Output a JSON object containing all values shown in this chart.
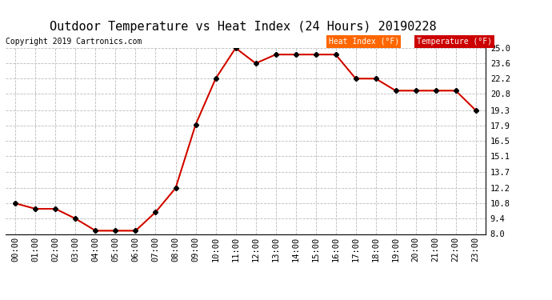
{
  "title": "Outdoor Temperature vs Heat Index (24 Hours) 20190228",
  "copyright": "Copyright 2019 Cartronics.com",
  "hours": [
    "00:00",
    "01:00",
    "02:00",
    "03:00",
    "04:00",
    "05:00",
    "06:00",
    "07:00",
    "08:00",
    "09:00",
    "10:00",
    "11:00",
    "12:00",
    "13:00",
    "14:00",
    "15:00",
    "16:00",
    "17:00",
    "18:00",
    "19:00",
    "20:00",
    "21:00",
    "22:00",
    "23:00"
  ],
  "temperature": [
    10.8,
    10.3,
    10.3,
    9.4,
    8.3,
    8.3,
    8.3,
    10.0,
    12.2,
    18.0,
    22.2,
    25.0,
    23.6,
    24.4,
    24.4,
    24.4,
    24.4,
    22.2,
    22.2,
    21.1,
    21.1,
    21.1,
    21.1,
    19.3
  ],
  "heat_index": [
    10.8,
    10.3,
    10.3,
    9.4,
    8.3,
    8.3,
    8.3,
    10.0,
    12.2,
    18.0,
    22.2,
    25.0,
    23.6,
    24.4,
    24.4,
    24.4,
    24.4,
    22.2,
    22.2,
    21.1,
    21.1,
    21.1,
    21.1,
    19.3
  ],
  "ylim": [
    8.0,
    25.0
  ],
  "yticks": [
    8.0,
    9.4,
    10.8,
    12.2,
    13.7,
    15.1,
    16.5,
    17.9,
    19.3,
    20.8,
    22.2,
    23.6,
    25.0
  ],
  "temp_color": "#cc0000",
  "heat_index_color": "#ff6600",
  "legend_heat_bg": "#ff6600",
  "legend_temp_bg": "#cc0000",
  "legend_text_color": "#ffffff",
  "grid_color": "#bbbbbb",
  "background_color": "#ffffff",
  "title_fontsize": 11,
  "copyright_fontsize": 7,
  "tick_fontsize": 7.5
}
